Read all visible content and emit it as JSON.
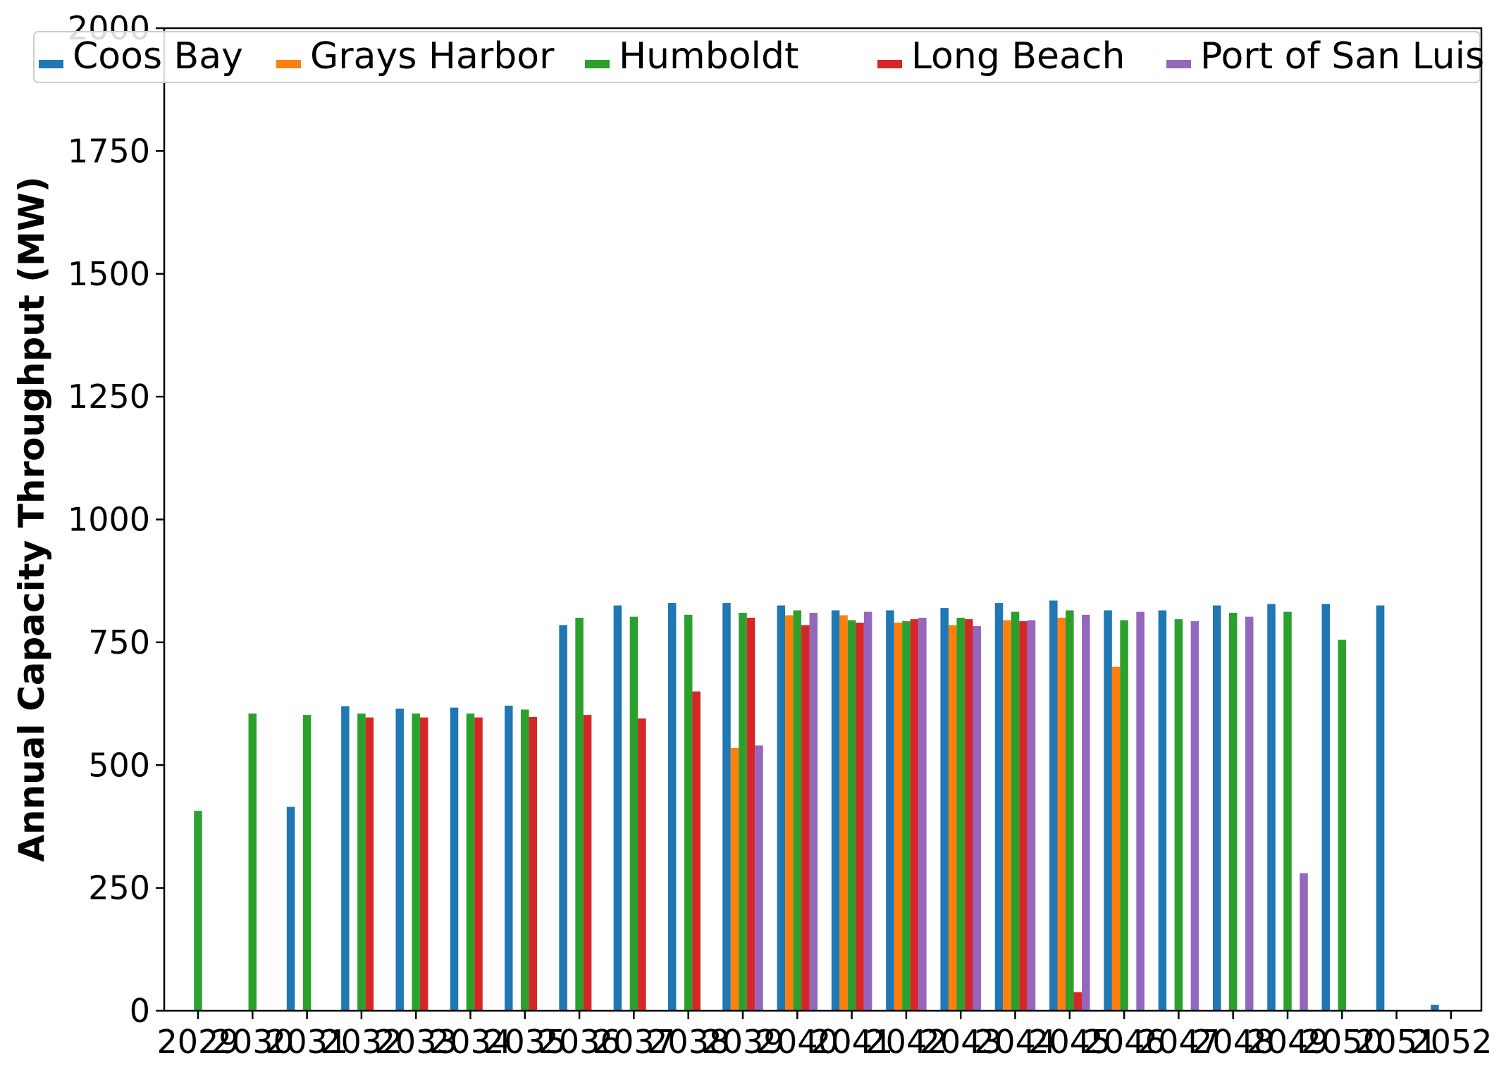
{
  "chart_data": {
    "type": "bar",
    "title": "",
    "xlabel": "",
    "ylabel": "Annual Capacity Throughput (MW)",
    "ylim": [
      0,
      2000
    ],
    "yticks": [
      0,
      250,
      500,
      750,
      1000,
      1250,
      1500,
      1750,
      2000
    ],
    "grid": false,
    "legend_position": "top",
    "categories": [
      "2029",
      "2030",
      "2031",
      "2032",
      "2033",
      "2034",
      "2035",
      "2036",
      "2037",
      "2038",
      "2039",
      "2040",
      "2041",
      "2042",
      "2043",
      "2044",
      "2045",
      "2046",
      "2047",
      "2048",
      "2049",
      "2050",
      "2051",
      "2052"
    ],
    "series": [
      {
        "name": "Coos Bay",
        "color": "#1f77b4",
        "values": [
          0,
          0,
          415,
          620,
          615,
          617,
          621,
          785,
          825,
          830,
          830,
          825,
          815,
          815,
          820,
          830,
          835,
          815,
          815,
          825,
          828,
          828,
          825,
          12
        ]
      },
      {
        "name": "Grays Harbor",
        "color": "#ff7f0e",
        "values": [
          0,
          0,
          0,
          0,
          0,
          0,
          0,
          0,
          0,
          0,
          535,
          805,
          805,
          790,
          785,
          795,
          800,
          700,
          0,
          0,
          0,
          0,
          0,
          0
        ]
      },
      {
        "name": "Humboldt",
        "color": "#2ca02c",
        "values": [
          407,
          605,
          602,
          605,
          605,
          605,
          613,
          800,
          802,
          806,
          810,
          815,
          795,
          793,
          800,
          812,
          815,
          795,
          797,
          810,
          812,
          755,
          0,
          0
        ]
      },
      {
        "name": "Long Beach",
        "color": "#d62728",
        "values": [
          0,
          0,
          0,
          597,
          597,
          597,
          598,
          602,
          595,
          650,
          800,
          785,
          790,
          797,
          797,
          793,
          38,
          0,
          0,
          0,
          0,
          0,
          0,
          0
        ]
      },
      {
        "name": "Port of San Luis",
        "color": "#9467bd",
        "values": [
          0,
          0,
          0,
          0,
          0,
          0,
          0,
          0,
          0,
          0,
          540,
          810,
          812,
          800,
          783,
          795,
          806,
          812,
          793,
          802,
          280,
          0,
          0,
          0
        ]
      }
    ]
  }
}
